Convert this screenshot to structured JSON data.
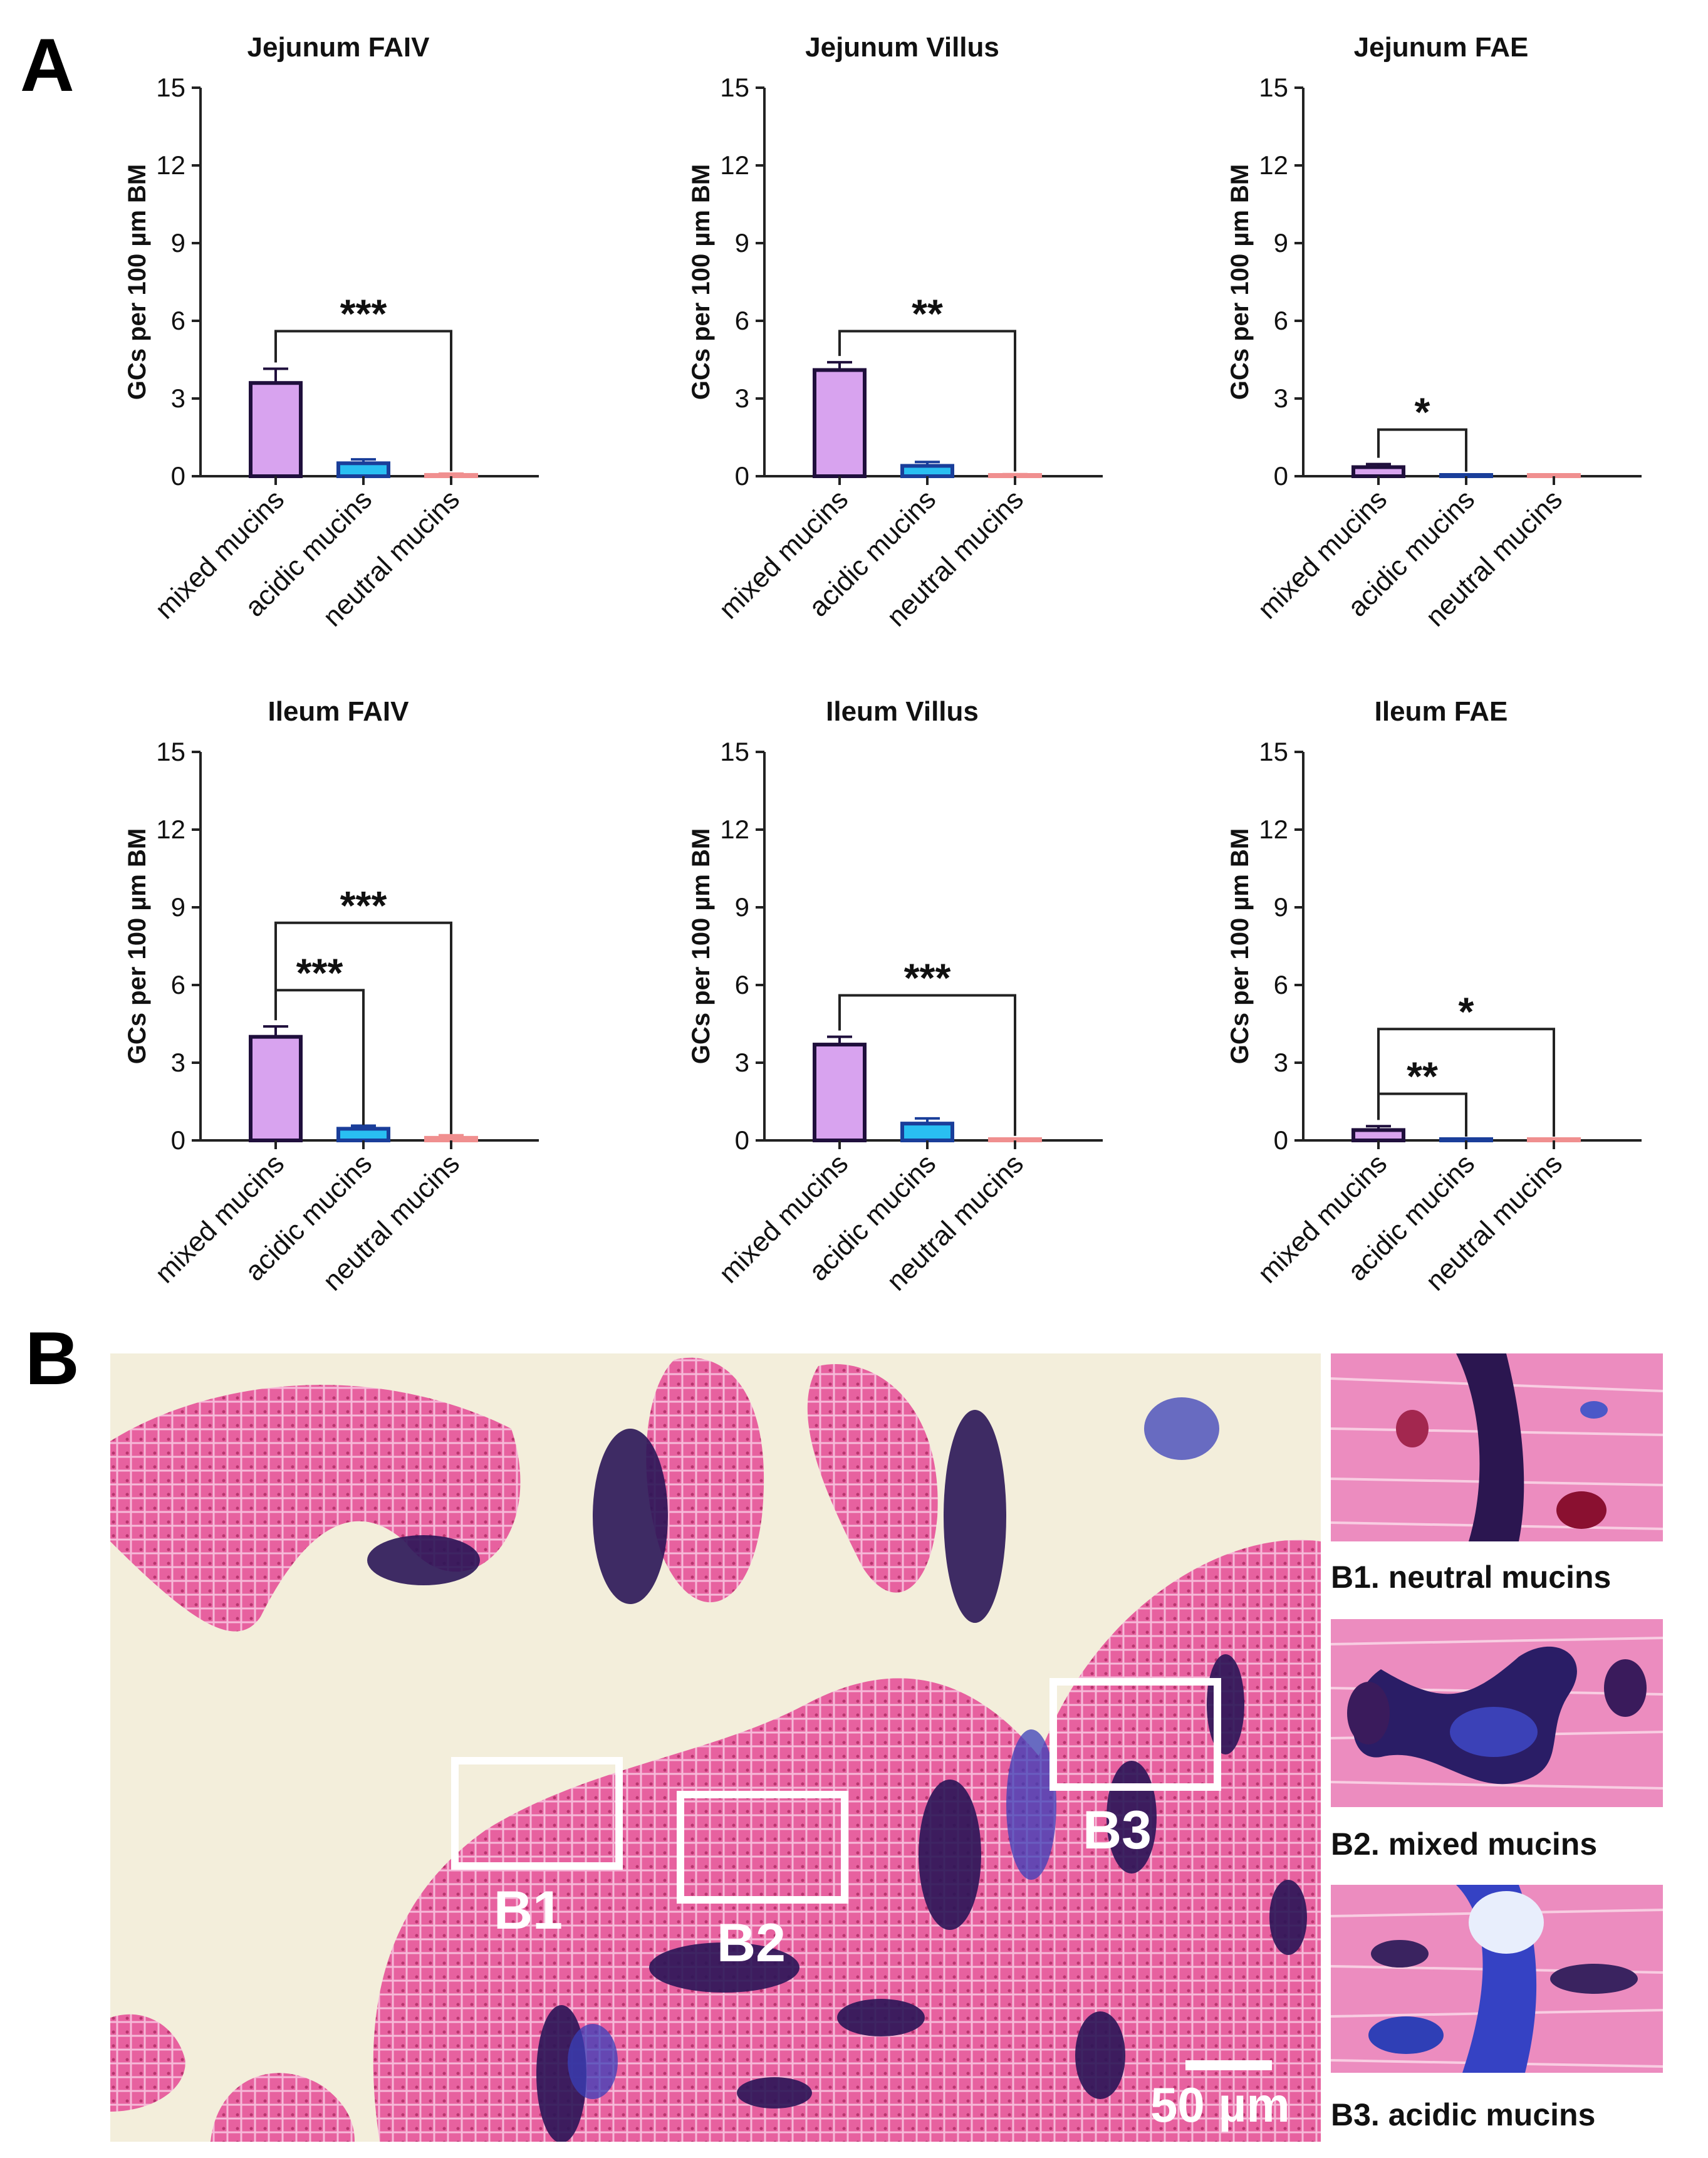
{
  "figure": {
    "panel_a_label": "A",
    "panel_b_label": "B"
  },
  "chart_data": [
    {
      "type": "bar",
      "title": "Jejunum FAIV",
      "ylabel": "GCs per 100 µm BM",
      "xlabel": "",
      "categories": [
        "mixed mucins",
        "acidic mucins",
        "neutral mucins"
      ],
      "values": [
        3.6,
        0.5,
        0.05
      ],
      "errors": [
        0.55,
        0.15,
        0.05
      ],
      "ylim": [
        0,
        15
      ],
      "yticks": [
        "0",
        "3",
        "6",
        "9",
        "12",
        "15"
      ],
      "significance": [
        {
          "from": 0,
          "to": 2,
          "label": "***",
          "y": 5.6
        }
      ]
    },
    {
      "type": "bar",
      "title": "Jejunum Villus",
      "ylabel": "GCs per 100 µm BM",
      "xlabel": "",
      "categories": [
        "mixed mucins",
        "acidic mucins",
        "neutral mucins"
      ],
      "values": [
        4.1,
        0.4,
        0.04
      ],
      "errors": [
        0.3,
        0.15,
        0.04
      ],
      "ylim": [
        0,
        15
      ],
      "yticks": [
        "0",
        "3",
        "6",
        "9",
        "12",
        "15"
      ],
      "significance": [
        {
          "from": 0,
          "to": 2,
          "label": "**",
          "y": 5.6
        }
      ]
    },
    {
      "type": "bar",
      "title": "Jejunum FAE",
      "ylabel": "GCs per 100 µm BM",
      "xlabel": "",
      "categories": [
        "mixed mucins",
        "acidic mucins",
        "neutral mucins"
      ],
      "values": [
        0.35,
        0.03,
        0.0
      ],
      "errors": [
        0.12,
        0.03,
        0.0
      ],
      "ylim": [
        0,
        15
      ],
      "yticks": [
        "0",
        "3",
        "6",
        "9",
        "12",
        "15"
      ],
      "significance": [
        {
          "from": 0,
          "to": 1,
          "label": "*",
          "y": 1.8
        }
      ]
    },
    {
      "type": "bar",
      "title": "Ileum FAIV",
      "ylabel": "GCs per 100 µm BM",
      "xlabel": "",
      "categories": [
        "mixed mucins",
        "acidic mucins",
        "neutral mucins"
      ],
      "values": [
        4.0,
        0.45,
        0.1
      ],
      "errors": [
        0.4,
        0.12,
        0.1
      ],
      "ylim": [
        0,
        15
      ],
      "yticks": [
        "0",
        "3",
        "6",
        "9",
        "12",
        "15"
      ],
      "significance": [
        {
          "from": 0,
          "to": 1,
          "label": "***",
          "y": 5.8
        },
        {
          "from": 0,
          "to": 2,
          "label": "***",
          "y": 8.4
        }
      ]
    },
    {
      "type": "bar",
      "title": "Ileum Villus",
      "ylabel": "GCs per 100 µm BM",
      "xlabel": "",
      "categories": [
        "mixed mucins",
        "acidic mucins",
        "neutral mucins"
      ],
      "values": [
        3.7,
        0.65,
        0.03
      ],
      "errors": [
        0.3,
        0.2,
        0.03
      ],
      "ylim": [
        0,
        15
      ],
      "yticks": [
        "0",
        "3",
        "6",
        "9",
        "12",
        "15"
      ],
      "significance": [
        {
          "from": 0,
          "to": 2,
          "label": "***",
          "y": 5.6
        }
      ]
    },
    {
      "type": "bar",
      "title": "Ileum FAE",
      "ylabel": "GCs per 100 µm BM",
      "xlabel": "",
      "categories": [
        "mixed mucins",
        "acidic mucins",
        "neutral mucins"
      ],
      "values": [
        0.4,
        0.0,
        0.0
      ],
      "errors": [
        0.15,
        0.0,
        0.0
      ],
      "ylim": [
        0,
        15
      ],
      "yticks": [
        "0",
        "3",
        "6",
        "9",
        "12",
        "15"
      ],
      "significance": [
        {
          "from": 0,
          "to": 1,
          "label": "**",
          "y": 1.8
        },
        {
          "from": 0,
          "to": 2,
          "label": "*",
          "y": 4.3
        }
      ]
    }
  ],
  "colors": {
    "mixed": "#d8a3ef",
    "acidic": "#29bff2",
    "neutral": "#f2a6a6",
    "bar_edge": [
      "#1f0f3c",
      "#1a3e9a",
      "#f08f8f"
    ]
  },
  "micrograph": {
    "boxes": [
      "B1",
      "B2",
      "B3"
    ],
    "scale_bar": "50 µm"
  },
  "insets": [
    {
      "caption": "B1. neutral mucins"
    },
    {
      "caption": "B2. mixed mucins"
    },
    {
      "caption": "B3. acidic mucins"
    }
  ]
}
